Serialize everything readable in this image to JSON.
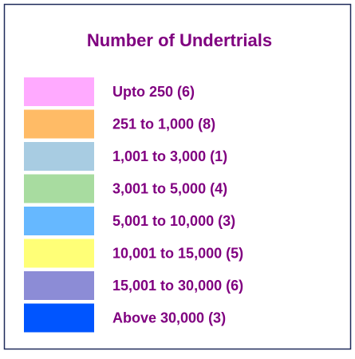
{
  "legend": {
    "title": "Number of Undertrials",
    "items": [
      {
        "label": "Upto 250 (6)",
        "color": "#ffaaff"
      },
      {
        "label": "251 to 1,000 (8)",
        "color": "#ffbb66"
      },
      {
        "label": "1,001 to 3,000 (1)",
        "color": "#a8cce2"
      },
      {
        "label": "3,001 to 5,000 (4)",
        "color": "#a8dca0"
      },
      {
        "label": "5,001 to 10,000 (3)",
        "color": "#66b8ff"
      },
      {
        "label": "10,001 to 15,000 (5)",
        "color": "#ffff77"
      },
      {
        "label": "15,001 to 30,000 (6)",
        "color": "#8c8cd6"
      },
      {
        "label": "Above 30,000 (3)",
        "color": "#0055ff"
      }
    ]
  }
}
